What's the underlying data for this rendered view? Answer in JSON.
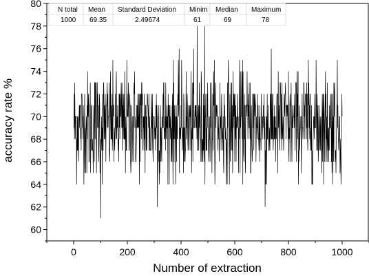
{
  "chart_data": {
    "type": "line",
    "title": "",
    "xlabel": "Number of extraction",
    "ylabel": "accuracy rate %",
    "xlim": [
      -100,
      1100
    ],
    "ylim": [
      59,
      80
    ],
    "x_ticks": [
      0,
      200,
      400,
      600,
      800,
      1000
    ],
    "x_tick_labels": [
      "0",
      "200",
      "400",
      "600",
      "800",
      "1000"
    ],
    "y_ticks": [
      60,
      62,
      64,
      66,
      68,
      70,
      72,
      74,
      76,
      78,
      80
    ],
    "y_tick_labels": [
      "60",
      "62",
      "64",
      "66",
      "68",
      "70",
      "72",
      "74",
      "76",
      "78",
      "80"
    ],
    "grid": false,
    "series_color": "#000000",
    "generation": {
      "n": 1000,
      "mean": 69.35,
      "std": 2.49674,
      "min": 61,
      "max": 78,
      "noted_points": [
        {
          "x": 100,
          "y": 61
        },
        {
          "x": 312,
          "y": 62
        },
        {
          "x": 713,
          "y": 62
        },
        {
          "x": 460,
          "y": 78
        },
        {
          "x": 488,
          "y": 78
        }
      ]
    },
    "stats_table": {
      "headers": [
        "N total",
        "Mean",
        "Standard Deviation",
        "Minim",
        "Median",
        "Maximum"
      ],
      "values": [
        "1000",
        "69.35",
        "2.49674",
        "61",
        "69",
        "78"
      ]
    }
  }
}
